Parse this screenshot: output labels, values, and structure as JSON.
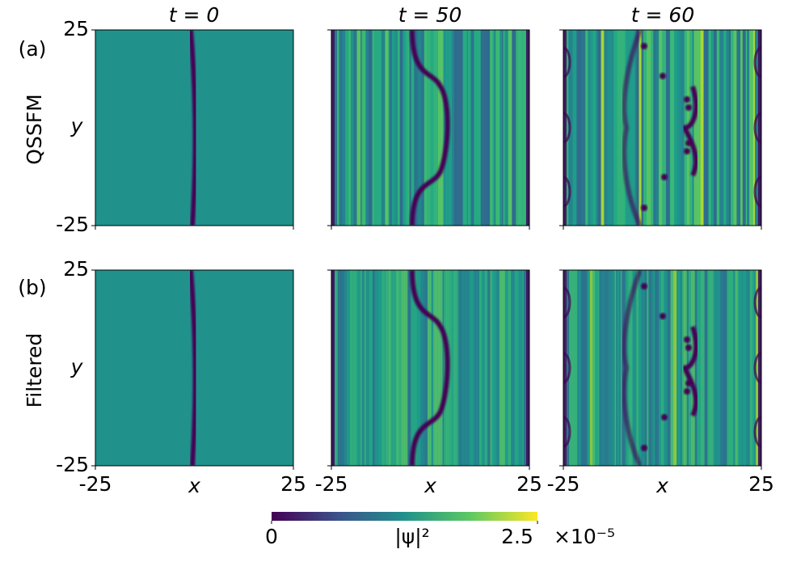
{
  "figure": {
    "column_titles": [
      "t = 0",
      "t = 50",
      "t = 60"
    ],
    "row_labels": [
      "(a)",
      "(b)"
    ],
    "row_names": [
      "QSSFM",
      "Filtered"
    ],
    "x_label": "x",
    "y_label": "y",
    "xlim": [
      -25,
      25
    ],
    "ylim": [
      -25,
      25
    ],
    "xticks": [
      -25,
      25
    ],
    "yticks": [
      -25,
      25
    ],
    "colorbar": {
      "label": "|ψ|²",
      "lim": [
        0,
        2.5
      ],
      "ticks": [
        0,
        2.5
      ],
      "multiplier": "×10⁻⁵"
    }
  }
}
